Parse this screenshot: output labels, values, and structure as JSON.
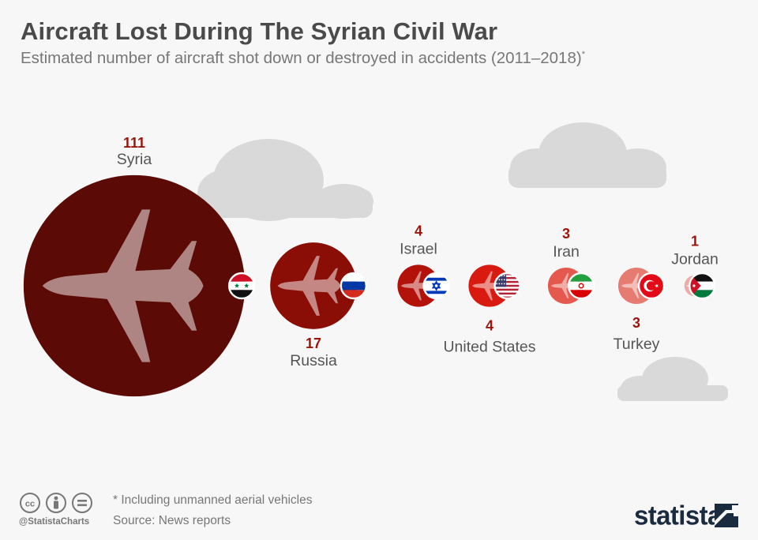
{
  "header": {
    "title": "Aircraft Lost During The Syrian Civil War",
    "subtitle": "Estimated number of aircraft shot down or destroyed in accidents (2011–2018)",
    "subtitle_mark": "*"
  },
  "chart_data": {
    "type": "bubble",
    "series": [
      {
        "country": "Syria",
        "value": 111,
        "label_pos": "above",
        "circle_color": "#5c0a05",
        "flag": "syria-flag-icon"
      },
      {
        "country": "Russia",
        "value": 17,
        "label_pos": "below",
        "circle_color": "#8a0e06",
        "flag": "russia-flag-icon"
      },
      {
        "country": "Israel",
        "value": 4,
        "label_pos": "above",
        "circle_color": "#b3120a",
        "flag": "israel-flag-icon"
      },
      {
        "country": "United States",
        "value": 4,
        "label_pos": "below",
        "circle_color": "#d91a10",
        "flag": "usa-flag-icon"
      },
      {
        "country": "Iran",
        "value": 3,
        "label_pos": "above",
        "circle_color": "#e4584d",
        "flag": "iran-flag-icon"
      },
      {
        "country": "Turkey",
        "value": 3,
        "label_pos": "below",
        "circle_color": "#e67b72",
        "flag": "turkey-flag-icon"
      },
      {
        "country": "Jordan",
        "value": 1,
        "label_pos": "above",
        "circle_color": "#eeaaa4",
        "flag": "jordan-flag-icon"
      }
    ],
    "value_color": "#9b140c",
    "label_color": "#555555"
  },
  "footer": {
    "note": "* Including unmanned aerial vehicles",
    "source": "Source: News reports",
    "handle": "@StatistaCharts",
    "brand": "statista"
  }
}
